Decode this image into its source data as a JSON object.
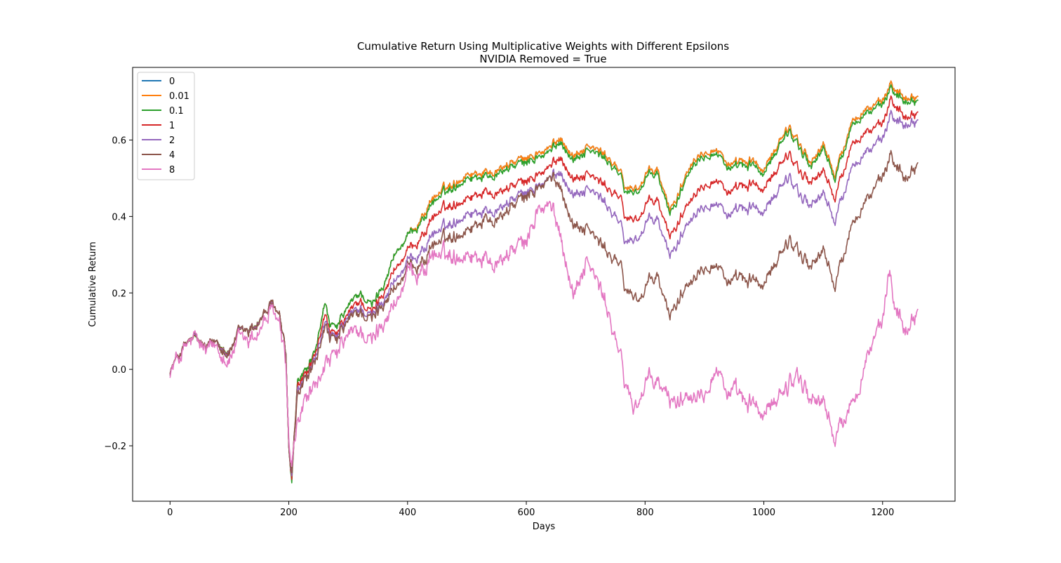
{
  "chart_data": {
    "type": "line",
    "title": "Cumulative Return Using Multiplicative Weights with Different Epsilons",
    "subtitle": "NVIDIA Removed = True",
    "xlabel": "Days",
    "ylabel": "Cumulative Return",
    "xlim": [
      -63,
      1322
    ],
    "ylim": [
      -0.345,
      0.79
    ],
    "xticks": [
      0,
      200,
      400,
      600,
      800,
      1000,
      1200
    ],
    "yticks": [
      -0.2,
      0.0,
      0.2,
      0.4,
      0.6
    ],
    "ytick_labels": [
      "−0.2",
      "0.0",
      "0.2",
      "0.4",
      "0.6"
    ],
    "grid": false,
    "legend_position": "top-left",
    "series": [
      {
        "name": "0",
        "color": "#1f77b4",
        "x": [
          0,
          20,
          40,
          60,
          80,
          100,
          120,
          140,
          160,
          175,
          185,
          195,
          200,
          205,
          215,
          230,
          245,
          260,
          270,
          280,
          300,
          320,
          340,
          360,
          380,
          400,
          430,
          460,
          500,
          530,
          560,
          600,
          640,
          660,
          680,
          700,
          720,
          740,
          760,
          770,
          790,
          800,
          820,
          840,
          850,
          880,
          920,
          950,
          980,
          1000,
          1040,
          1060,
          1080,
          1100,
          1120,
          1150,
          1180,
          1200,
          1215,
          1240,
          1260
        ],
        "y": [
          0.0,
          0.05,
          0.075,
          0.05,
          0.08,
          0.055,
          0.1,
          0.12,
          0.15,
          0.16,
          0.14,
          0.05,
          -0.2,
          -0.28,
          -0.02,
          0.0,
          0.05,
          0.18,
          0.1,
          0.1,
          0.16,
          0.2,
          0.16,
          0.22,
          0.31,
          0.33,
          0.42,
          0.47,
          0.52,
          0.52,
          0.54,
          0.55,
          0.58,
          0.61,
          0.56,
          0.58,
          0.57,
          0.55,
          0.5,
          0.47,
          0.48,
          0.5,
          0.52,
          0.42,
          0.44,
          0.56,
          0.58,
          0.52,
          0.55,
          0.52,
          0.63,
          0.6,
          0.54,
          0.58,
          0.51,
          0.65,
          0.68,
          0.7,
          0.74,
          0.71,
          0.72
        ]
      },
      {
        "name": "0.01",
        "color": "#ff7f0e",
        "x": [
          0,
          20,
          40,
          60,
          80,
          100,
          120,
          140,
          160,
          175,
          185,
          195,
          200,
          205,
          215,
          230,
          245,
          260,
          270,
          280,
          300,
          320,
          340,
          360,
          380,
          400,
          430,
          460,
          500,
          530,
          560,
          600,
          640,
          660,
          680,
          700,
          720,
          740,
          760,
          770,
          790,
          800,
          820,
          840,
          850,
          880,
          920,
          950,
          980,
          1000,
          1040,
          1060,
          1080,
          1100,
          1120,
          1150,
          1180,
          1200,
          1215,
          1240,
          1260
        ],
        "y": [
          0.0,
          0.05,
          0.075,
          0.05,
          0.08,
          0.055,
          0.1,
          0.12,
          0.15,
          0.16,
          0.14,
          0.05,
          -0.2,
          -0.28,
          -0.02,
          0.0,
          0.05,
          0.18,
          0.1,
          0.1,
          0.16,
          0.2,
          0.16,
          0.22,
          0.31,
          0.33,
          0.42,
          0.47,
          0.52,
          0.52,
          0.54,
          0.55,
          0.58,
          0.61,
          0.56,
          0.58,
          0.57,
          0.55,
          0.5,
          0.47,
          0.48,
          0.5,
          0.52,
          0.42,
          0.44,
          0.56,
          0.58,
          0.52,
          0.55,
          0.52,
          0.63,
          0.6,
          0.54,
          0.58,
          0.51,
          0.65,
          0.68,
          0.7,
          0.74,
          0.71,
          0.72
        ]
      },
      {
        "name": "0.1",
        "color": "#2ca02c",
        "x": [
          0,
          20,
          40,
          60,
          80,
          100,
          120,
          140,
          160,
          175,
          185,
          195,
          200,
          205,
          215,
          230,
          245,
          260,
          270,
          280,
          300,
          320,
          340,
          360,
          380,
          400,
          430,
          460,
          500,
          530,
          560,
          600,
          640,
          660,
          680,
          700,
          720,
          740,
          760,
          770,
          790,
          800,
          820,
          840,
          850,
          880,
          920,
          950,
          980,
          1000,
          1040,
          1060,
          1080,
          1100,
          1120,
          1150,
          1180,
          1200,
          1215,
          1240,
          1260
        ],
        "y": [
          0.0,
          0.05,
          0.075,
          0.05,
          0.08,
          0.055,
          0.1,
          0.12,
          0.15,
          0.16,
          0.14,
          0.05,
          -0.2,
          -0.29,
          -0.02,
          0.0,
          0.05,
          0.18,
          0.1,
          0.1,
          0.16,
          0.2,
          0.16,
          0.22,
          0.31,
          0.33,
          0.41,
          0.46,
          0.51,
          0.51,
          0.53,
          0.54,
          0.57,
          0.6,
          0.55,
          0.57,
          0.56,
          0.54,
          0.49,
          0.46,
          0.47,
          0.49,
          0.51,
          0.41,
          0.43,
          0.55,
          0.57,
          0.51,
          0.54,
          0.51,
          0.62,
          0.59,
          0.53,
          0.57,
          0.5,
          0.64,
          0.67,
          0.69,
          0.73,
          0.7,
          0.71
        ]
      },
      {
        "name": "1",
        "color": "#d62728",
        "x": [
          0,
          20,
          40,
          60,
          80,
          100,
          120,
          140,
          160,
          175,
          185,
          195,
          200,
          205,
          215,
          230,
          245,
          260,
          270,
          280,
          300,
          320,
          340,
          360,
          380,
          400,
          430,
          460,
          500,
          530,
          560,
          600,
          640,
          660,
          680,
          700,
          720,
          740,
          760,
          770,
          790,
          800,
          820,
          840,
          850,
          880,
          920,
          950,
          980,
          1000,
          1040,
          1060,
          1080,
          1100,
          1120,
          1150,
          1180,
          1200,
          1215,
          1240,
          1260
        ],
        "y": [
          0.0,
          0.05,
          0.075,
          0.05,
          0.08,
          0.055,
          0.1,
          0.12,
          0.15,
          0.16,
          0.14,
          0.05,
          -0.2,
          -0.28,
          -0.03,
          -0.01,
          0.04,
          0.15,
          0.08,
          0.08,
          0.14,
          0.18,
          0.14,
          0.2,
          0.27,
          0.29,
          0.37,
          0.42,
          0.46,
          0.47,
          0.48,
          0.49,
          0.53,
          0.56,
          0.5,
          0.51,
          0.49,
          0.47,
          0.43,
          0.39,
          0.4,
          0.42,
          0.44,
          0.35,
          0.37,
          0.47,
          0.5,
          0.45,
          0.49,
          0.47,
          0.56,
          0.53,
          0.49,
          0.51,
          0.45,
          0.59,
          0.62,
          0.64,
          0.7,
          0.66,
          0.68
        ]
      },
      {
        "name": "2",
        "color": "#9467bd",
        "x": [
          0,
          20,
          40,
          60,
          80,
          100,
          120,
          140,
          160,
          175,
          185,
          195,
          200,
          205,
          215,
          230,
          245,
          260,
          270,
          280,
          300,
          320,
          340,
          360,
          380,
          400,
          430,
          460,
          500,
          530,
          560,
          600,
          640,
          660,
          680,
          700,
          720,
          740,
          760,
          770,
          790,
          800,
          820,
          840,
          850,
          880,
          920,
          950,
          980,
          1000,
          1040,
          1060,
          1080,
          1100,
          1120,
          1150,
          1180,
          1200,
          1215,
          1240,
          1260
        ],
        "y": [
          0.0,
          0.05,
          0.075,
          0.05,
          0.08,
          0.055,
          0.1,
          0.12,
          0.15,
          0.16,
          0.14,
          0.05,
          -0.2,
          -0.27,
          -0.04,
          -0.02,
          0.03,
          0.13,
          0.07,
          0.07,
          0.13,
          0.16,
          0.13,
          0.18,
          0.24,
          0.26,
          0.33,
          0.37,
          0.42,
          0.42,
          0.44,
          0.46,
          0.5,
          0.52,
          0.46,
          0.47,
          0.45,
          0.42,
          0.36,
          0.33,
          0.35,
          0.37,
          0.39,
          0.3,
          0.32,
          0.42,
          0.44,
          0.39,
          0.43,
          0.41,
          0.5,
          0.47,
          0.43,
          0.45,
          0.39,
          0.53,
          0.57,
          0.6,
          0.66,
          0.64,
          0.66
        ]
      },
      {
        "name": "4",
        "color": "#8c564b",
        "x": [
          0,
          20,
          40,
          60,
          80,
          100,
          120,
          140,
          160,
          175,
          185,
          195,
          200,
          205,
          215,
          230,
          245,
          260,
          270,
          280,
          300,
          320,
          340,
          360,
          380,
          400,
          430,
          460,
          500,
          530,
          560,
          600,
          640,
          660,
          680,
          700,
          720,
          740,
          760,
          770,
          790,
          800,
          820,
          840,
          850,
          880,
          920,
          950,
          980,
          1000,
          1040,
          1060,
          1080,
          1100,
          1120,
          1150,
          1180,
          1200,
          1215,
          1240,
          1260
        ],
        "y": [
          0.0,
          0.05,
          0.075,
          0.05,
          0.08,
          0.055,
          0.1,
          0.12,
          0.15,
          0.16,
          0.14,
          0.05,
          -0.2,
          -0.26,
          -0.05,
          -0.02,
          0.02,
          0.12,
          0.06,
          0.06,
          0.12,
          0.15,
          0.12,
          0.17,
          0.22,
          0.24,
          0.3,
          0.34,
          0.38,
          0.4,
          0.42,
          0.45,
          0.5,
          0.48,
          0.38,
          0.37,
          0.33,
          0.3,
          0.25,
          0.2,
          0.19,
          0.2,
          0.24,
          0.14,
          0.17,
          0.26,
          0.28,
          0.21,
          0.24,
          0.22,
          0.33,
          0.32,
          0.27,
          0.3,
          0.22,
          0.38,
          0.45,
          0.5,
          0.55,
          0.5,
          0.55
        ]
      },
      {
        "name": "8",
        "color": "#e377c2",
        "x": [
          0,
          20,
          40,
          60,
          80,
          100,
          120,
          140,
          160,
          175,
          185,
          195,
          200,
          205,
          215,
          230,
          245,
          260,
          270,
          280,
          300,
          320,
          340,
          360,
          380,
          400,
          430,
          460,
          500,
          530,
          560,
          600,
          620,
          640,
          660,
          680,
          700,
          720,
          740,
          750,
          770,
          780,
          800,
          820,
          840,
          860,
          880,
          900,
          920,
          940,
          960,
          980,
          1000,
          1040,
          1060,
          1080,
          1100,
          1120,
          1140,
          1160,
          1180,
          1200,
          1210,
          1220,
          1240,
          1260
        ],
        "y": [
          0.0,
          0.04,
          0.07,
          0.04,
          0.07,
          0.04,
          0.08,
          0.1,
          0.13,
          0.14,
          0.12,
          0.03,
          -0.18,
          -0.24,
          -0.12,
          -0.07,
          -0.04,
          0.02,
          0.0,
          0.02,
          0.08,
          0.1,
          0.06,
          0.12,
          0.18,
          0.22,
          0.28,
          0.3,
          0.32,
          0.3,
          0.31,
          0.33,
          0.42,
          0.43,
          0.35,
          0.2,
          0.28,
          0.22,
          0.14,
          0.06,
          -0.05,
          -0.1,
          -0.05,
          -0.04,
          -0.08,
          -0.07,
          -0.04,
          -0.06,
          0.01,
          -0.06,
          -0.1,
          -0.08,
          -0.12,
          -0.05,
          0.0,
          -0.08,
          -0.1,
          -0.18,
          -0.12,
          -0.06,
          0.05,
          0.12,
          0.24,
          0.17,
          0.1,
          0.17
        ]
      }
    ]
  }
}
